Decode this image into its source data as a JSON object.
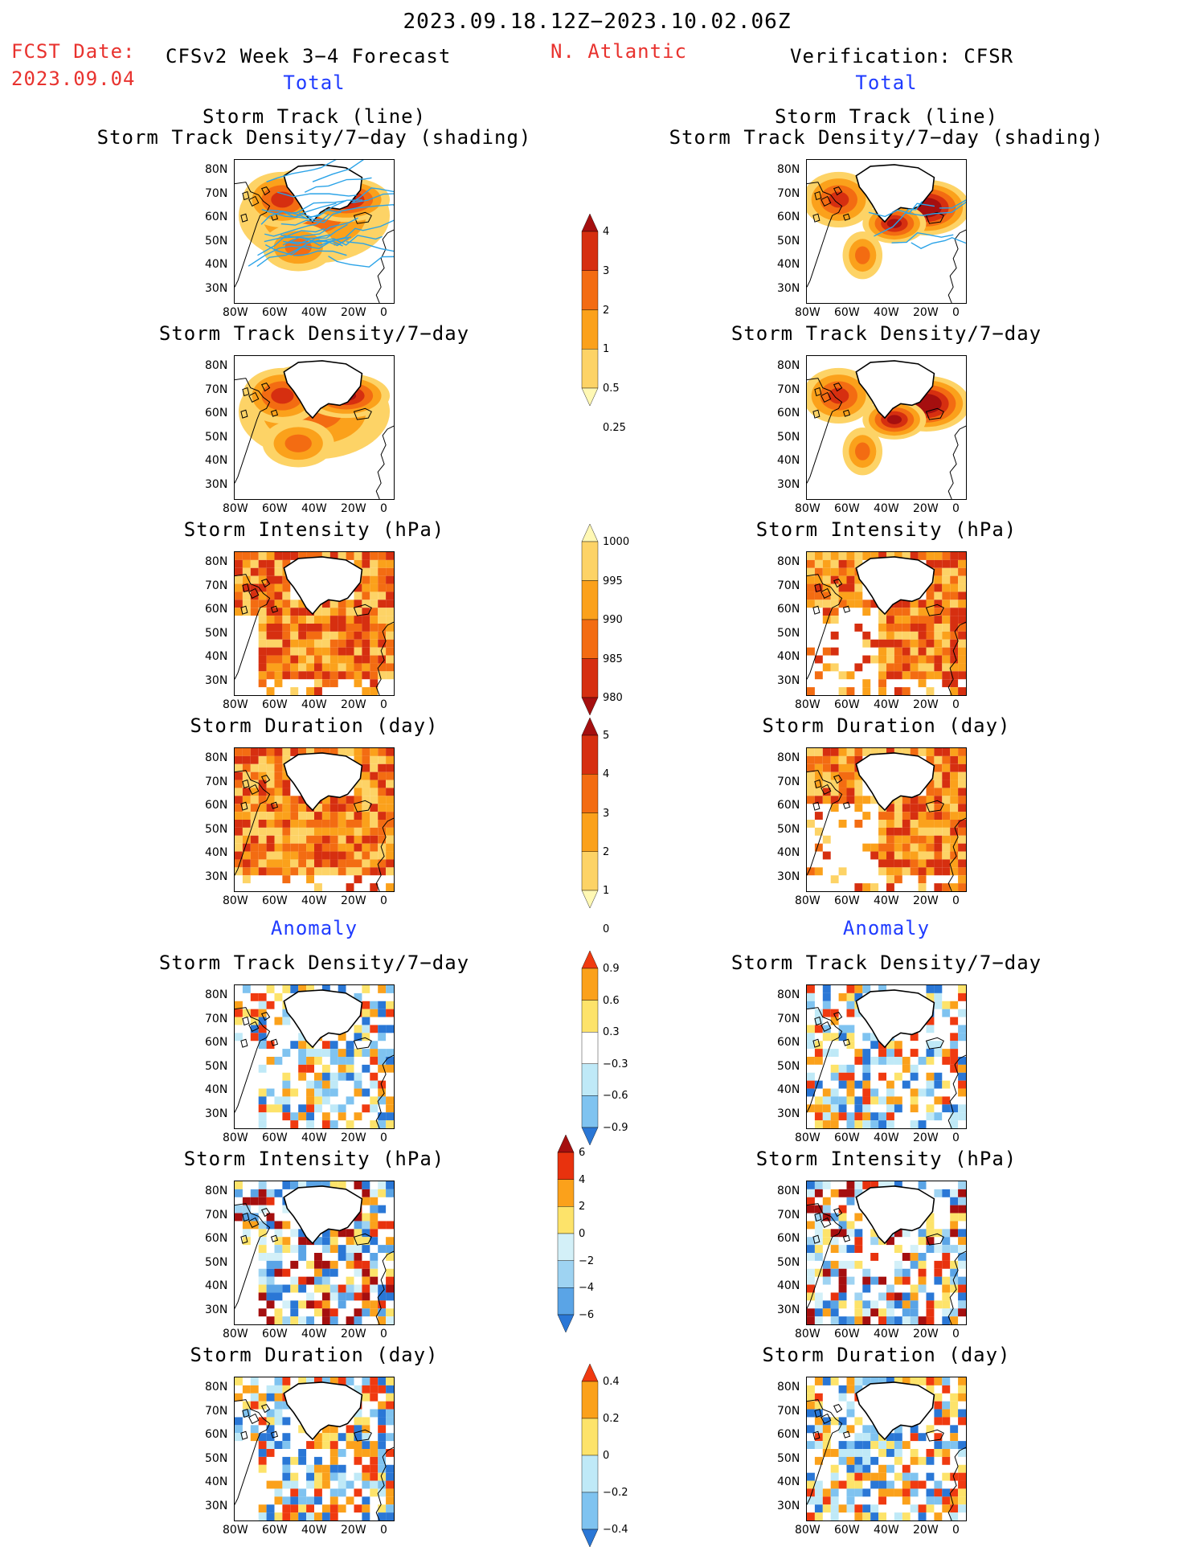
{
  "header": {
    "period": "2023.09.18.12Z−2023.10.02.06Z",
    "fcst_label": "FCST Date:",
    "fcst_date": "2023.09.04",
    "model": "CFSv2 Week 3−4 Forecast",
    "region": "N. Atlantic",
    "verification": "Verification: CFSR",
    "total_left": "Total",
    "total_right": "Total",
    "anom_left": "Anomaly",
    "anom_right": "Anomaly"
  },
  "panel_titles": {
    "track_line": "Storm Track (line)",
    "track_shading": "Storm Track Density/7−day (shading)",
    "density": "Storm Track Density/7−day",
    "intensity": "Storm Intensity (hPa)",
    "duration": "Storm Duration (day)"
  },
  "axes": {
    "lat_ticks": [
      "80N",
      "70N",
      "60N",
      "50N",
      "40N",
      "30N"
    ],
    "lon_ticks": [
      "80W",
      "60W",
      "40W",
      "20W",
      "0"
    ]
  },
  "colorbars": {
    "density_total": {
      "labels": [
        "4",
        "3",
        "2",
        "1",
        "0.5",
        "0.25"
      ],
      "colors": [
        "#a50f0f",
        "#d62f10",
        "#f36c12",
        "#fba11b",
        "#fdd366",
        "#fff8b4"
      ]
    },
    "intensity_total": {
      "labels": [
        "1000",
        "995",
        "990",
        "985",
        "980"
      ],
      "colors": [
        "#fff8b4",
        "#fdd366",
        "#fba11b",
        "#f36c12",
        "#d62f10",
        "#a50f0f"
      ]
    },
    "duration_total": {
      "labels": [
        "5",
        "4",
        "3",
        "2",
        "1",
        "0"
      ],
      "colors": [
        "#a50f0f",
        "#d62f10",
        "#f36c12",
        "#fba11b",
        "#fdd366",
        "#fff8b4"
      ]
    },
    "density_anom": {
      "labels": [
        "0.9",
        "0.6",
        "0.3",
        "−0.3",
        "−0.6",
        "−0.9"
      ],
      "colors": [
        "#f03a10",
        "#fba11b",
        "#fde36a",
        "#ffffff",
        "#bfe9f7",
        "#7fc3f0",
        "#2a77d6"
      ]
    },
    "intensity_anom": {
      "labels": [
        "6",
        "4",
        "2",
        "0",
        "−2",
        "−4",
        "−6"
      ],
      "colors": [
        "#a50f0f",
        "#e8320e",
        "#fba11b",
        "#fde36a",
        "#d3f0f8",
        "#9ed3f2",
        "#5aa4e6",
        "#2a77d6"
      ]
    },
    "duration_anom": {
      "labels": [
        "0.4",
        "0.2",
        "0",
        "−0.2",
        "−0.4"
      ],
      "colors": [
        "#f03a10",
        "#fba11b",
        "#fde36a",
        "#bfe9f7",
        "#7fc3f0",
        "#2a77d6"
      ]
    }
  }
}
